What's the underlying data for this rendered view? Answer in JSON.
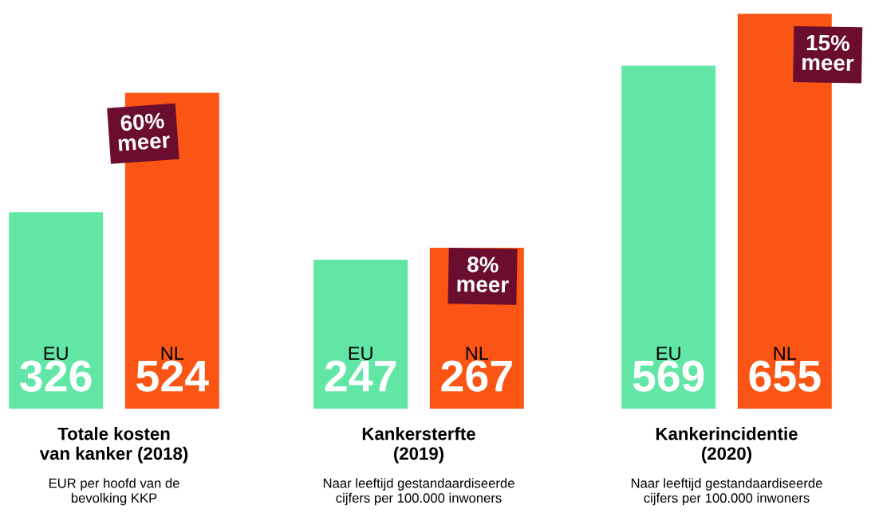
{
  "chart_data": [
    {
      "type": "bar",
      "title": "Totale kosten\nvan kanker (2018)",
      "subtitle": "EUR per hoofd van de\nbevolking KKP",
      "categories": [
        "EU",
        "NL"
      ],
      "values": [
        326,
        524
      ],
      "colors": [
        "#61e6a6",
        "#fa5514"
      ],
      "data_labels": true,
      "tick_labels": false,
      "annotations": [
        "60%\nmeer"
      ]
    },
    {
      "type": "bar",
      "title": "Kankersterfte\n(2019)",
      "subtitle": "Naar leeftijd gestandaardiseerde\ncijfers per 100.000 inwoners",
      "categories": [
        "EU",
        "NL"
      ],
      "values": [
        247,
        267
      ],
      "colors": [
        "#61e6a6",
        "#fa5514"
      ],
      "data_labels": true,
      "tick_labels": false,
      "annotations": [
        "8%\nmeer"
      ]
    },
    {
      "type": "bar",
      "title": "Kankerincidentie\n(2020)",
      "subtitle": "Naar leeftijd gestandaardiseerde\ncijfers per 100.000 inwoners",
      "categories": [
        "EU",
        "NL"
      ],
      "values": [
        569,
        655
      ],
      "colors": [
        "#61e6a6",
        "#fa5514"
      ],
      "data_labels": true,
      "tick_labels": false,
      "annotations": [
        "15%\nmeer"
      ]
    }
  ]
}
